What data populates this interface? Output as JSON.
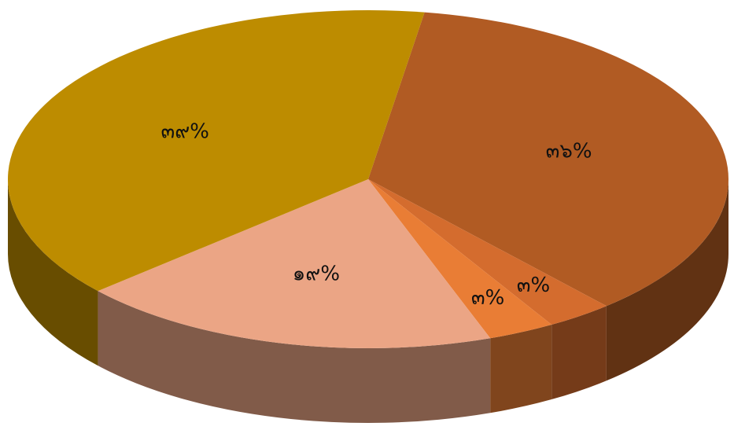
{
  "chart_data": {
    "type": "pie",
    "categories": [
      null,
      null,
      null,
      null,
      null
    ],
    "values": [
      36,
      3,
      3,
      19,
      39
    ],
    "value_labels": [
      "๓๖%",
      "๓%",
      "๓%",
      "๑๙%",
      "๓๙%"
    ],
    "colors": [
      "#b15b23",
      "#d46c2e",
      "#e97d35",
      "#eba585",
      "#bd8c00"
    ]
  }
}
